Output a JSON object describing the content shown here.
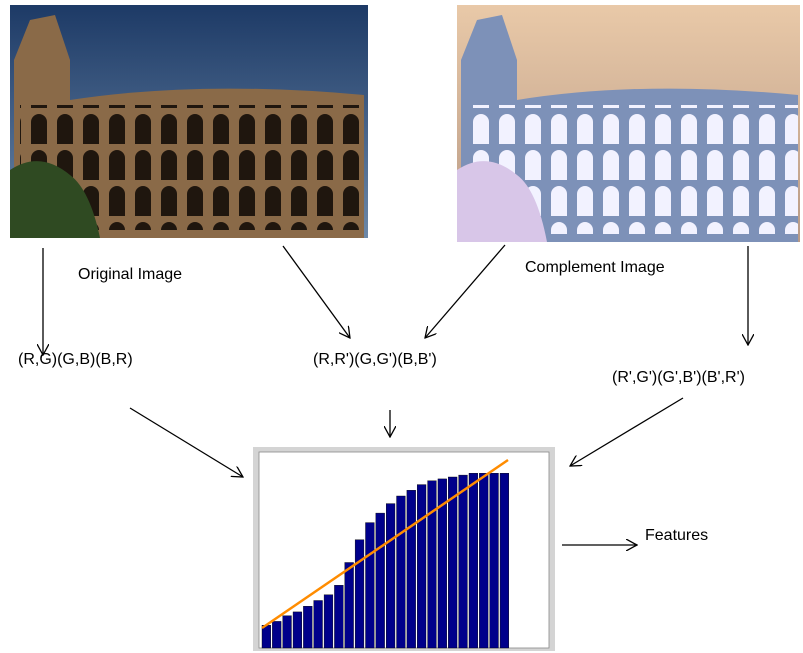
{
  "labels": {
    "original": "Original Image",
    "complement": "Complement Image",
    "rg_pairs": "(R,G)(G,B)(B,R)",
    "cross_pairs": "(R,R')(G,G')(B,B')",
    "complement_pairs": "(R',G')(G',B')(B',R')",
    "features": "Features"
  },
  "plot": {
    "values": [
      12,
      14,
      17,
      19,
      22,
      25,
      28,
      33,
      45,
      57,
      66,
      71,
      76,
      80,
      83,
      86,
      88,
      89,
      90,
      91,
      92,
      92,
      92,
      92
    ],
    "color": "#00008b",
    "line_color": "#ff8c00"
  }
}
